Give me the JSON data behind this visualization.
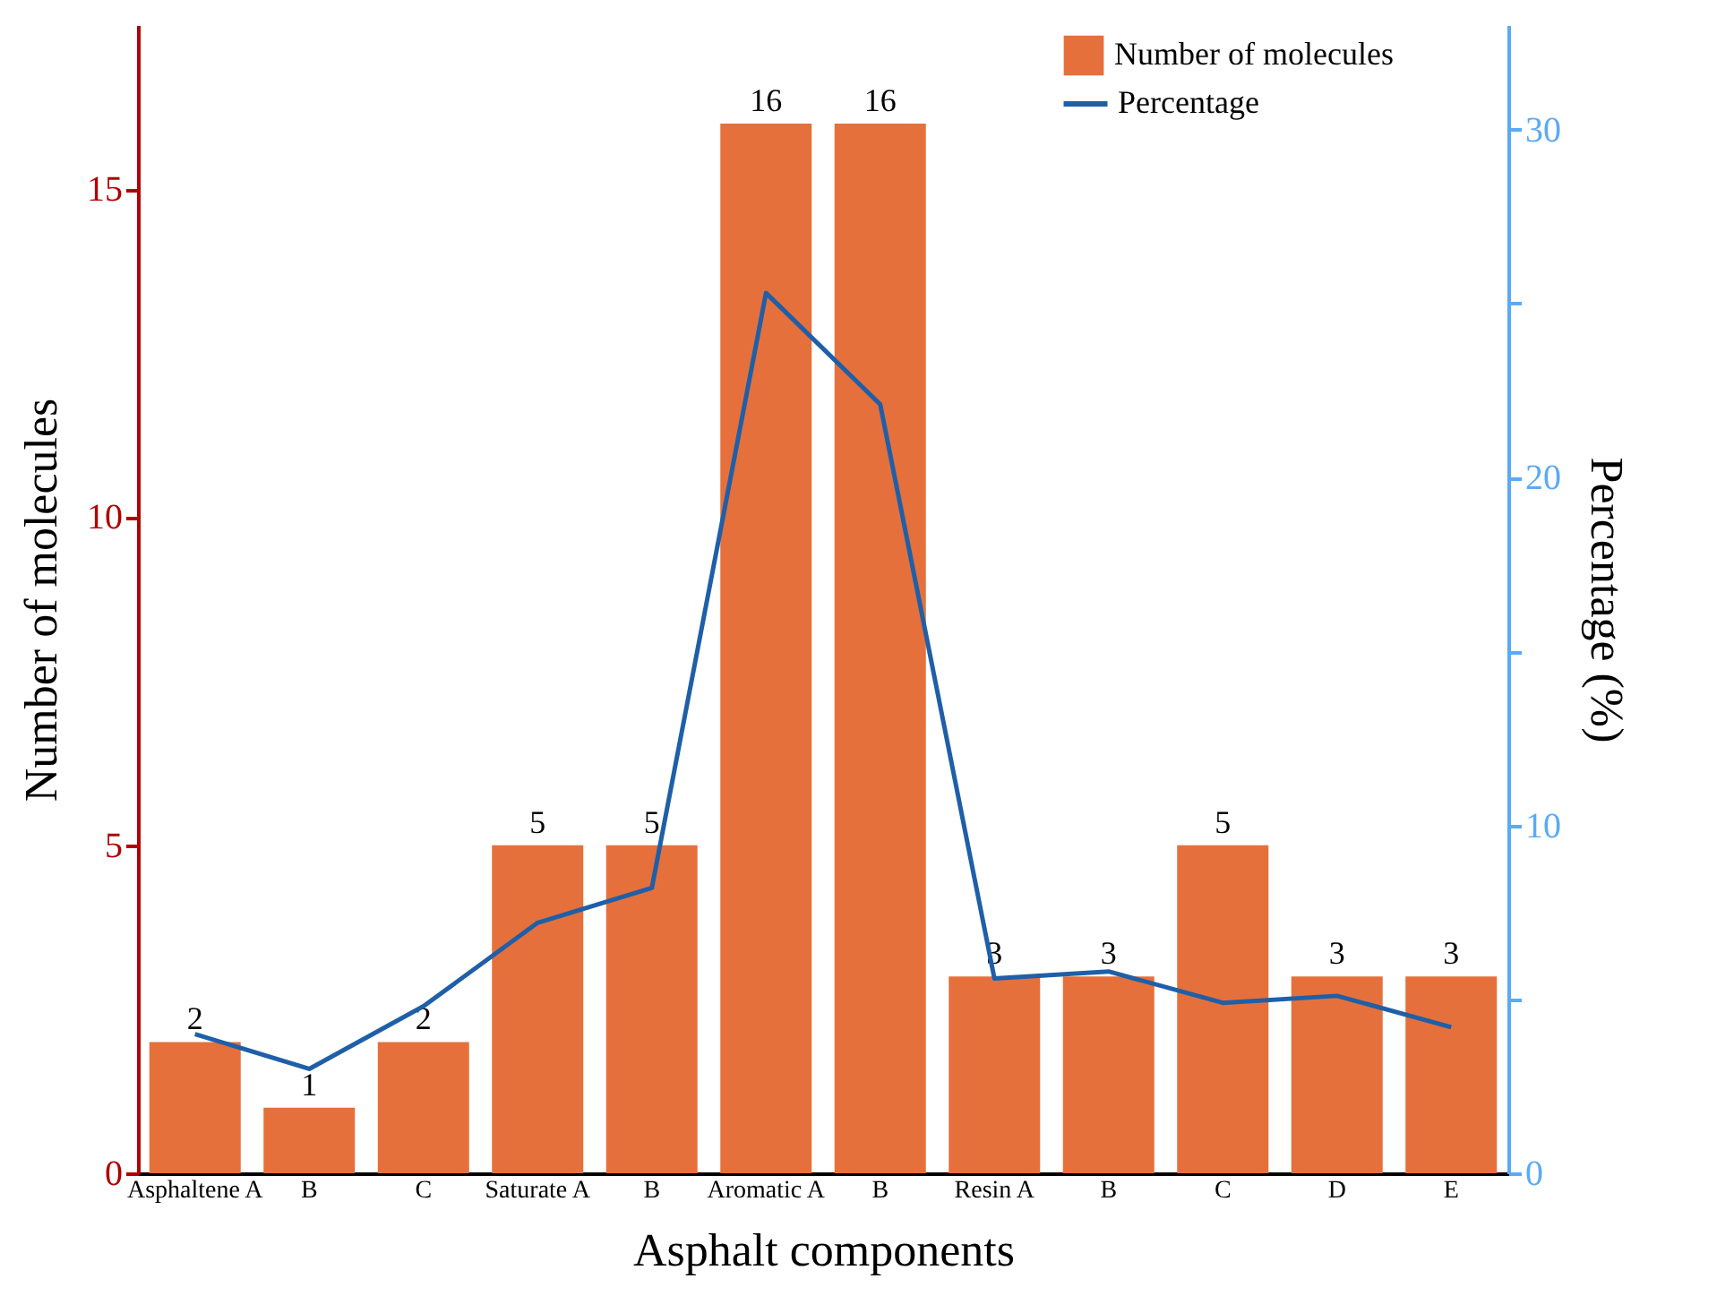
{
  "chart_data": {
    "type": "bar",
    "xlabel": "Asphalt components",
    "ylabel": "Number of molecules",
    "y2label": "Percentage (%)",
    "categories": [
      "Asphaltene A",
      "B",
      "C",
      "Saturate A",
      "B",
      "Aromatic A",
      "B",
      "Resin A",
      "B",
      "C",
      "D",
      "E"
    ],
    "series": [
      {
        "name": "Number of molecules",
        "color": "#e5703c",
        "values": [
          2,
          1,
          2,
          5,
          5,
          16,
          16,
          3,
          3,
          5,
          3,
          3
        ],
        "value_labels": [
          "2",
          "1",
          "2",
          "5",
          "5",
          "16",
          "16",
          "3",
          "3",
          "5",
          "3",
          "3"
        ]
      },
      {
        "name": "Percentage",
        "type": "line",
        "axis": "y2",
        "color": "#1f5fa8",
        "values": [
          4.0,
          3.0,
          4.8,
          7.2,
          8.2,
          25.3,
          22.1,
          5.6,
          5.8,
          4.9,
          5.1,
          4.2
        ]
      }
    ],
    "ylim": [
      0,
      17.5
    ],
    "yticks": [
      0,
      5,
      10,
      15
    ],
    "y2lim": [
      0,
      33
    ],
    "y2ticks": [
      0,
      {
        "value": 5,
        "label": null
      },
      10,
      {
        "value": 15,
        "label": null
      },
      20,
      {
        "value": 25,
        "label": null
      },
      30
    ],
    "legend": "top right",
    "line_style": "solid",
    "marker": "none"
  }
}
